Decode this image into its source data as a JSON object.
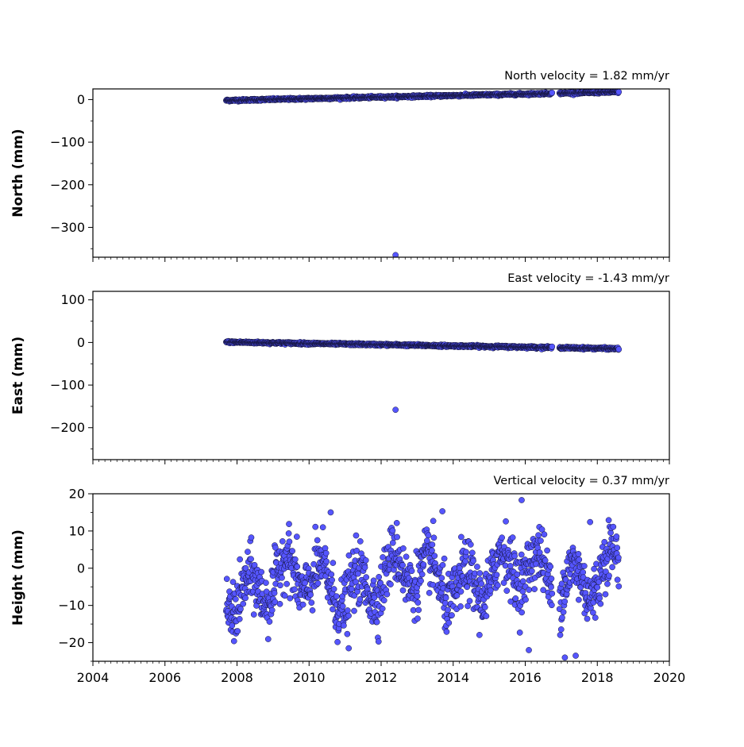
{
  "chart_data": [
    {
      "type": "scatter",
      "title": "North velocity = 1.82 mm/yr",
      "xlabel": "",
      "ylabel": "North (mm)",
      "xlim": [
        2004,
        2020
      ],
      "ylim": [
        -370,
        25
      ],
      "yticks": [
        0,
        -100,
        -200,
        -300
      ],
      "ytick_labels": [
        "0",
        "−100",
        "−200",
        "−300"
      ],
      "velocity_mm_per_yr": 1.82,
      "data_start": 2007.7,
      "data_end": 2018.6,
      "gaps": [
        [
          2016.75,
          2016.95
        ]
      ],
      "intercept_mm": -2,
      "trend_mm_per_yr": 1.82,
      "noise_mm": 1.2,
      "outliers": [
        {
          "x": 2012.4,
          "y": -365
        }
      ],
      "marker_color": "#5555ff",
      "marker_edge": "#111133",
      "grid": false
    },
    {
      "type": "scatter",
      "title": "East velocity = -1.43 mm/yr",
      "xlabel": "",
      "ylabel": "East (mm)",
      "xlim": [
        2004,
        2020
      ],
      "ylim": [
        -275,
        120
      ],
      "yticks": [
        100,
        0,
        -100,
        -200
      ],
      "ytick_labels": [
        "100",
        "0",
        "−100",
        "−200"
      ],
      "velocity_mm_per_yr": -1.43,
      "data_start": 2007.7,
      "data_end": 2018.6,
      "gaps": [
        [
          2016.75,
          2016.95
        ]
      ],
      "intercept_mm": 1,
      "trend_mm_per_yr": -1.43,
      "noise_mm": 1.2,
      "outliers": [
        {
          "x": 2012.4,
          "y": -158
        }
      ],
      "marker_color": "#5555ff",
      "marker_edge": "#111133",
      "grid": false
    },
    {
      "type": "scatter",
      "title": "Vertical velocity = 0.37 mm/yr",
      "xlabel": "",
      "ylabel": "Height (mm)",
      "xlim": [
        2004,
        2020
      ],
      "ylim": [
        -25,
        20
      ],
      "yticks": [
        20,
        10,
        0,
        -10,
        -20
      ],
      "ytick_labels": [
        "20",
        "10",
        "0",
        "−10",
        "−20"
      ],
      "xticks": [
        2004,
        2006,
        2008,
        2010,
        2012,
        2014,
        2016,
        2018,
        2020
      ],
      "xtick_labels": [
        "2004",
        "2006",
        "2008",
        "2010",
        "2012",
        "2014",
        "2016",
        "2018",
        "2020"
      ],
      "velocity_mm_per_yr": 0.37,
      "data_start": 2007.7,
      "data_end": 2018.6,
      "gaps": [
        [
          2016.75,
          2016.95
        ]
      ],
      "intercept_mm": -5,
      "trend_mm_per_yr": 0.37,
      "seasonal_amplitude_mm": 5,
      "noise_mm": 4,
      "outliers": [
        {
          "x": 2010.6,
          "y": 15
        },
        {
          "x": 2013.7,
          "y": 15.3
        },
        {
          "x": 2015.9,
          "y": 18.3
        },
        {
          "x": 2017.8,
          "y": 12.4
        },
        {
          "x": 2017.1,
          "y": -24
        },
        {
          "x": 2017.4,
          "y": -23.5
        },
        {
          "x": 2011.1,
          "y": -21.5
        },
        {
          "x": 2016.1,
          "y": -22
        }
      ],
      "marker_color": "#5555ff",
      "marker_edge": "#111133",
      "grid": false
    }
  ]
}
